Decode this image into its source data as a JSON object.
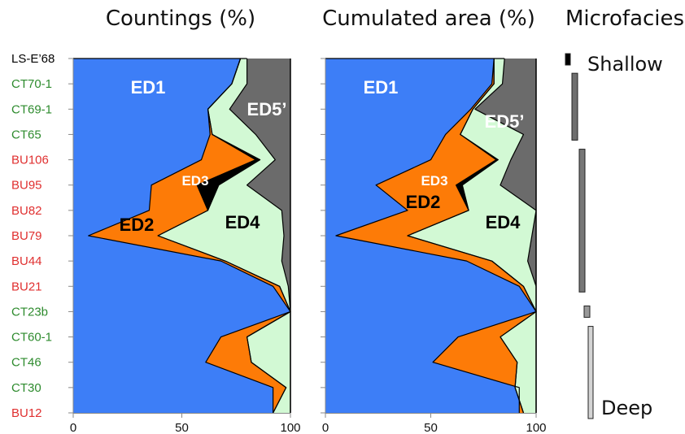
{
  "chart_data": [
    {
      "type": "area",
      "title": "Countings (%)",
      "xlim": [
        0,
        100
      ],
      "xticks": [
        "0",
        "50",
        "100"
      ],
      "samples": [
        "LS-E’68",
        "CT70-1",
        "CT69-1",
        "CT65",
        "BU106",
        "BU95",
        "BU82",
        "BU79",
        "BU44",
        "BU21",
        "CT23b",
        "CT60-1",
        "CT46",
        "CT30",
        "BU12"
      ],
      "sample_colors": [
        "#000000",
        "#2e8b2e",
        "#2e8b2e",
        "#2e8b2e",
        "#e03030",
        "#e03030",
        "#e03030",
        "#e03030",
        "#e03030",
        "#e03030",
        "#2e8b2e",
        "#2e8b2e",
        "#2e8b2e",
        "#2e8b2e",
        "#e03030"
      ],
      "boundaries": [
        {
          "name": "ED1/ED2",
          "values": [
            77,
            73,
            62,
            63,
            59,
            36,
            35,
            7,
            68,
            92,
            100,
            68,
            61,
            92,
            92
          ]
        },
        {
          "name": "ED2/ED3",
          "values": [
            77,
            73,
            62,
            64,
            84,
            57,
            62,
            39,
            70,
            95,
            100,
            80,
            82,
            98,
            92
          ]
        },
        {
          "name": "ED3/ED4",
          "values": [
            77,
            73,
            62,
            64,
            86,
            67,
            62,
            39,
            70,
            95,
            100,
            80,
            82,
            98,
            92
          ]
        },
        {
          "name": "ED4/ED5’",
          "values": [
            80,
            80,
            72,
            84,
            93,
            80,
            96,
            97,
            96,
            99,
            100,
            100,
            100,
            100,
            100
          ]
        }
      ],
      "zones": [
        "ED1",
        "ED2",
        "ED3",
        "ED4",
        "ED5’"
      ]
    },
    {
      "type": "area",
      "title": "Cumulated area (%)",
      "xlim": [
        0,
        100
      ],
      "xticks": [
        "0",
        "50",
        "100"
      ],
      "boundaries": [
        {
          "name": "ED1/ED2",
          "values": [
            80,
            79,
            69,
            57,
            50,
            24,
            39,
            5,
            67,
            92,
            100,
            63,
            51,
            92,
            92
          ]
        },
        {
          "name": "ED2/ED3",
          "values": [
            80,
            80,
            70,
            64,
            81,
            62,
            68,
            39,
            79,
            94,
            100,
            83,
            91,
            90,
            94
          ]
        },
        {
          "name": "ED3/ED4",
          "values": [
            80,
            80,
            70,
            64,
            82,
            65,
            68,
            39,
            79,
            94,
            100,
            83,
            91,
            90,
            94
          ]
        },
        {
          "name": "ED4/ED5’",
          "values": [
            85,
            84,
            71,
            94,
            88,
            83,
            100,
            98,
            96,
            100,
            100,
            100,
            100,
            100,
            100
          ]
        }
      ],
      "zones": [
        "ED1",
        "ED2",
        "ED3",
        "ED4",
        "ED5’"
      ]
    }
  ],
  "zone_colors": {
    "ED1": "#3d7ef7",
    "ED2": "#fd7b07",
    "ED3": "#000000",
    "ED4": "#d2f9d4",
    "ED5’": "#6b6b6b"
  },
  "microfacies": {
    "title": "Microfacies",
    "shallow_label": "Shallow",
    "deep_label": "Deep",
    "bars": [
      {
        "from": "LS-E’68",
        "to": "LS-E’68",
        "fill": "#000000"
      },
      {
        "from": "CT70-1",
        "to": "CT65",
        "fill": "#6e6e6e"
      },
      {
        "from": "BU106",
        "to": "BU21",
        "fill": "#777777"
      },
      {
        "from": "CT23b",
        "to": "CT23b",
        "fill": "#999999"
      },
      {
        "from": "CT60-1",
        "to": "BU12",
        "fill": "#d4d4d4"
      }
    ]
  }
}
